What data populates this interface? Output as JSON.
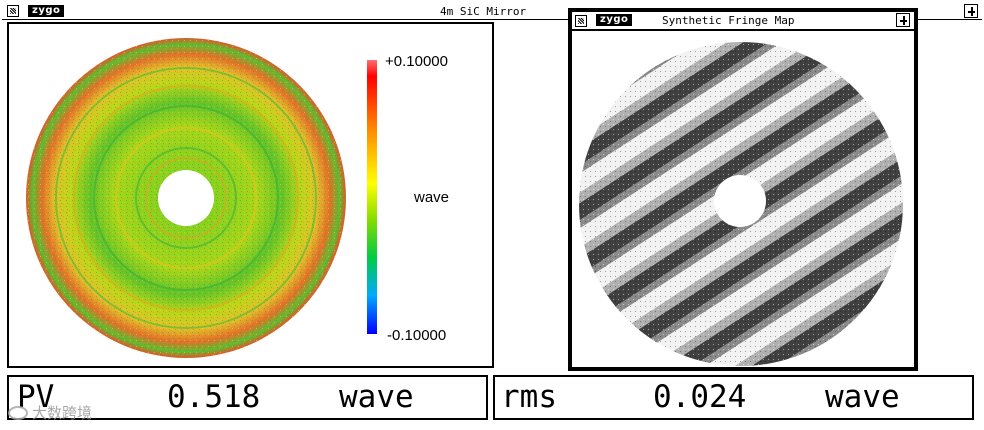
{
  "main_window": {
    "logo": "zygo",
    "title": "4m SiC Mirror"
  },
  "colorbar": {
    "max_label": "+0.10000",
    "min_label": "-0.10000",
    "unit_label": "wave",
    "colors": [
      "#0000ff",
      "#00aaff",
      "#00cc44",
      "#88dd00",
      "#ffff00",
      "#ff8800",
      "#ff0000",
      "#ff6666"
    ]
  },
  "fringe_window": {
    "logo": "zygo",
    "title": "Synthetic Fringe Map"
  },
  "pv_readout": {
    "label": "PV",
    "value": "0.518",
    "unit": "wave"
  },
  "rms_readout": {
    "label": "rms",
    "value": "0.024",
    "unit": "wave"
  },
  "watermark": {
    "text": "大数跨境"
  }
}
